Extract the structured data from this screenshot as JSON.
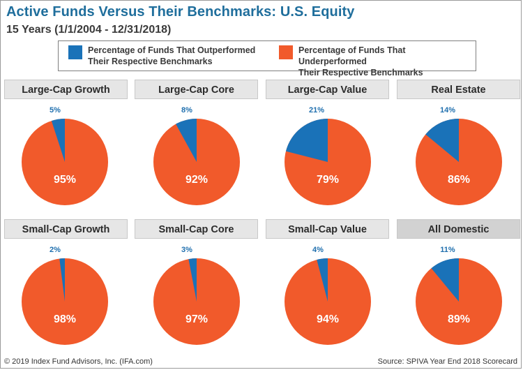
{
  "title": "Active Funds Versus Their Benchmarks: U.S. Equity",
  "subtitle": "15 Years (1/1/2004 - 12/31/2018)",
  "legend": {
    "outperformed": "Percentage of Funds That Outperformed\nTheir Respective Benchmarks",
    "underperformed": "Percentage of Funds That Underperformed\nTheir Respective Benchmarks"
  },
  "colors": {
    "outperformed": "#1a72b8",
    "underperformed": "#f15a2b",
    "outperformed_label": "#1f6fae"
  },
  "footer": {
    "left": "© 2019 Index Fund Advisors, Inc. (IFA.com)",
    "right": "Source: SPIVA Year End 2018 Scorecard"
  },
  "chart_data": [
    {
      "type": "pie",
      "title": "Large-Cap Growth",
      "slices": [
        {
          "label": "5%",
          "value": 5,
          "series": "outperformed"
        },
        {
          "label": "95%",
          "value": 95,
          "series": "underperformed"
        }
      ]
    },
    {
      "type": "pie",
      "title": "Large-Cap Core",
      "slices": [
        {
          "label": "8%",
          "value": 8,
          "series": "outperformed"
        },
        {
          "label": "92%",
          "value": 92,
          "series": "underperformed"
        }
      ]
    },
    {
      "type": "pie",
      "title": "Large-Cap Value",
      "slices": [
        {
          "label": "21%",
          "value": 21,
          "series": "outperformed"
        },
        {
          "label": "79%",
          "value": 79,
          "series": "underperformed"
        }
      ]
    },
    {
      "type": "pie",
      "title": "Real Estate",
      "slices": [
        {
          "label": "14%",
          "value": 14,
          "series": "outperformed"
        },
        {
          "label": "86%",
          "value": 86,
          "series": "underperformed"
        }
      ]
    },
    {
      "type": "pie",
      "title": "Small-Cap Growth",
      "slices": [
        {
          "label": "2%",
          "value": 2,
          "series": "outperformed"
        },
        {
          "label": "98%",
          "value": 98,
          "series": "underperformed"
        }
      ]
    },
    {
      "type": "pie",
      "title": "Small-Cap Core",
      "slices": [
        {
          "label": "3%",
          "value": 3,
          "series": "outperformed"
        },
        {
          "label": "97%",
          "value": 97,
          "series": "underperformed"
        }
      ]
    },
    {
      "type": "pie",
      "title": "Small-Cap Value",
      "slices": [
        {
          "label": "4%",
          "value": 4,
          "series": "outperformed"
        },
        {
          "label": "94%",
          "value": 94,
          "series": "underperformed"
        }
      ]
    },
    {
      "type": "pie",
      "title": "All Domestic",
      "slices": [
        {
          "label": "11%",
          "value": 11,
          "series": "outperformed"
        },
        {
          "label": "89%",
          "value": 89,
          "series": "underperformed"
        }
      ]
    }
  ]
}
